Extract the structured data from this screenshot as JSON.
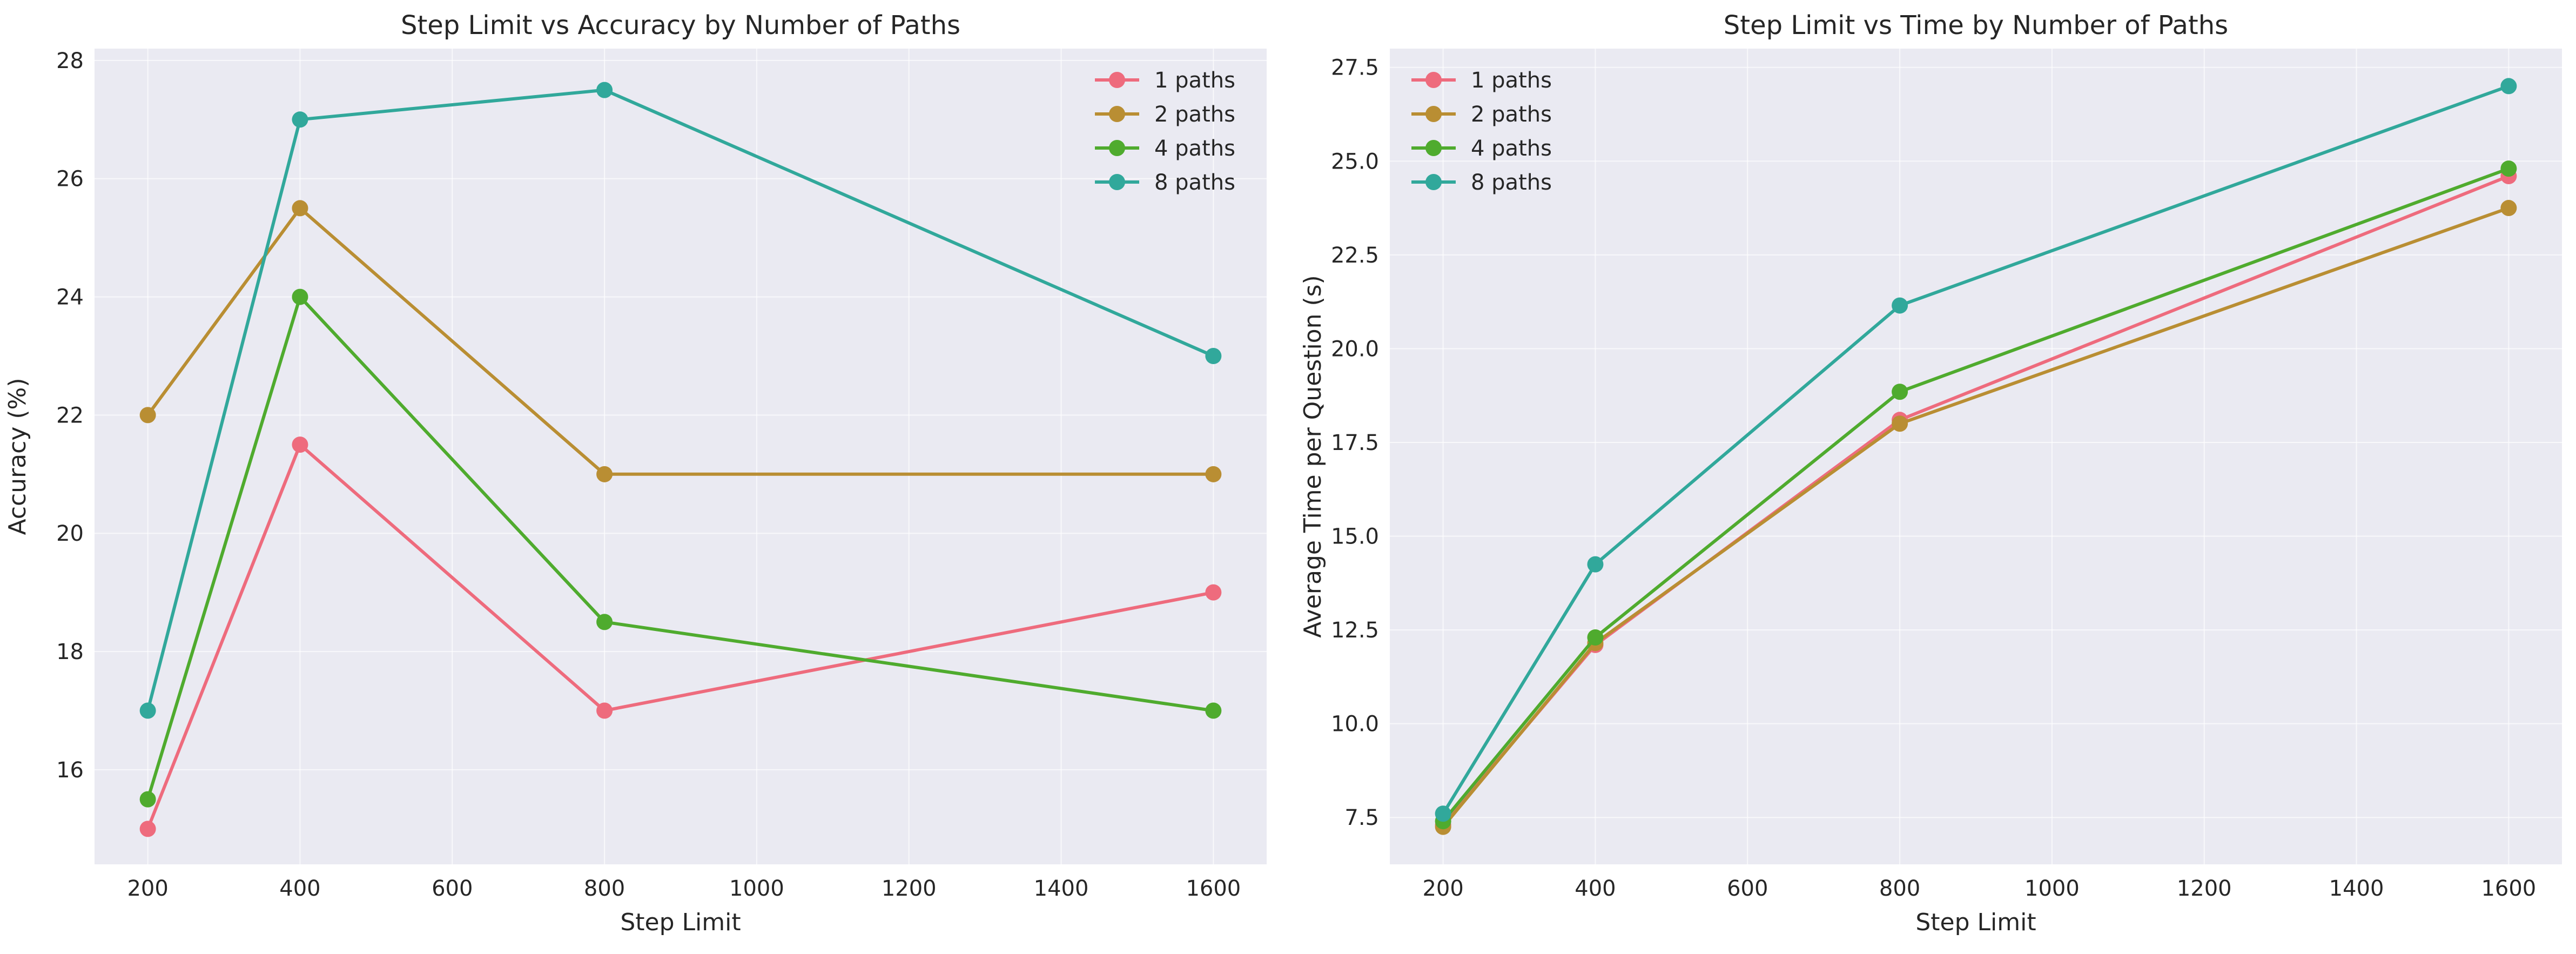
{
  "chart_data": [
    {
      "type": "line",
      "title": "Step Limit vs Accuracy by Number of Paths",
      "xlabel": "Step Limit",
      "ylabel": "Accuracy (%)",
      "xlim": [
        130,
        1670
      ],
      "ylim": [
        14.4,
        28.2
      ],
      "xticks": [
        200,
        400,
        600,
        800,
        1000,
        1200,
        1400,
        1600
      ],
      "yticks": [
        16,
        18,
        20,
        22,
        24,
        26,
        28
      ],
      "ytick_decimals": 0,
      "legend_position": "upper right",
      "grid": true,
      "x": [
        200,
        400,
        800,
        1600
      ],
      "series": [
        {
          "name": "1 paths",
          "color": "#ee6b7d",
          "values": [
            15.0,
            21.5,
            17.0,
            19.0
          ]
        },
        {
          "name": "2 paths",
          "color": "#b98e33",
          "values": [
            22.0,
            25.5,
            21.0,
            21.0
          ]
        },
        {
          "name": "4 paths",
          "color": "#4fab2e",
          "values": [
            15.5,
            24.0,
            18.5,
            17.0
          ]
        },
        {
          "name": "8 paths",
          "color": "#31a89b",
          "values": [
            17.0,
            27.0,
            27.5,
            23.0
          ]
        }
      ]
    },
    {
      "type": "line",
      "title": "Step Limit vs Time by Number of Paths",
      "xlabel": "Step Limit",
      "ylabel": "Average Time per Question (s)",
      "xlim": [
        130,
        1670
      ],
      "ylim": [
        6.25,
        28.0
      ],
      "xticks": [
        200,
        400,
        600,
        800,
        1000,
        1200,
        1400,
        1600
      ],
      "yticks": [
        7.5,
        10.0,
        12.5,
        15.0,
        17.5,
        20.0,
        22.5,
        25.0,
        27.5
      ],
      "ytick_decimals": 1,
      "legend_position": "upper left",
      "grid": true,
      "x": [
        200,
        400,
        800,
        1600
      ],
      "series": [
        {
          "name": "1 paths",
          "color": "#ee6b7d",
          "values": [
            7.3,
            12.1,
            18.1,
            24.6
          ]
        },
        {
          "name": "2 paths",
          "color": "#b98e33",
          "values": [
            7.25,
            12.15,
            18.0,
            23.75
          ]
        },
        {
          "name": "4 paths",
          "color": "#4fab2e",
          "values": [
            7.4,
            12.3,
            18.85,
            24.8
          ]
        },
        {
          "name": "8 paths",
          "color": "#31a89b",
          "values": [
            7.6,
            14.25,
            21.15,
            27.0
          ]
        }
      ]
    }
  ]
}
